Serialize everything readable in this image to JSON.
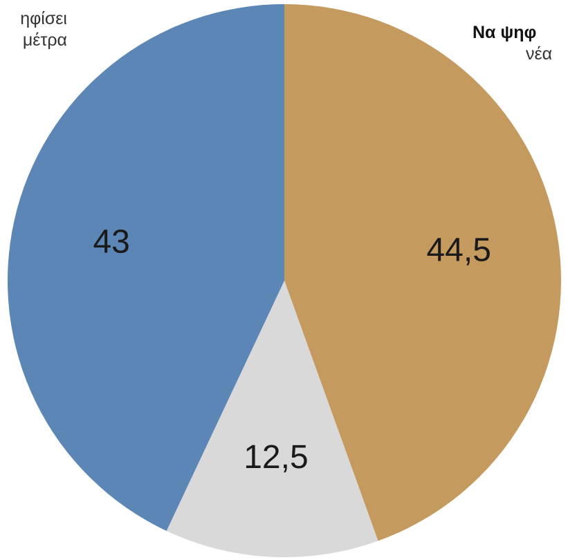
{
  "chart_data": {
    "type": "pie",
    "slices": [
      {
        "label": "44,5",
        "value": 44.5,
        "color": "#c49a5f"
      },
      {
        "label": "12,5",
        "value": 12.5,
        "color": "#d9d9d9"
      },
      {
        "label": "43",
        "value": 43,
        "color": "#5c86b5"
      }
    ],
    "annotations": {
      "left": {
        "line1": "ηφίσει",
        "line2": "μέτρα"
      },
      "right": {
        "line1": "Να ψηφ",
        "line2": "νέα"
      }
    }
  }
}
